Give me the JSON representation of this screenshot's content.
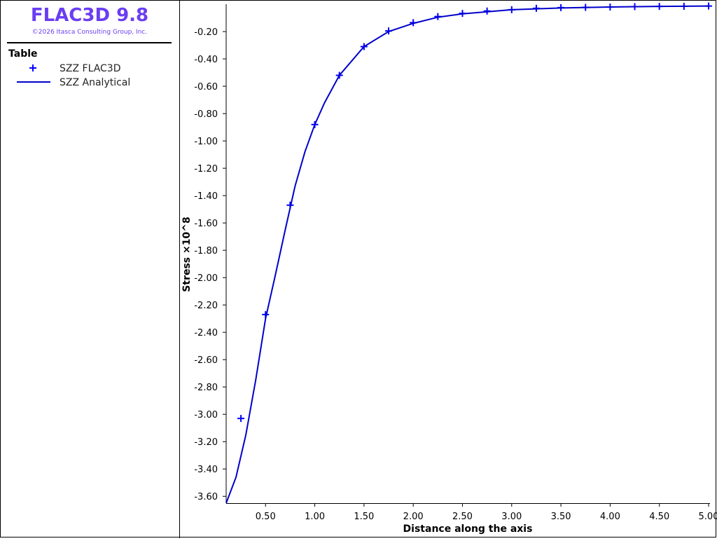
{
  "chart_data": {
    "type": "line",
    "title": "FLAC3D 9.8",
    "subtitle": "©2026 Itasca Consulting Group, Inc.",
    "legend_title": "Table",
    "x_label": "Distance along the axis",
    "y_label": "Stress ×10^8",
    "xlim": [
      0.1,
      5.0
    ],
    "ylim": [
      -3.65,
      -0.01
    ],
    "xticks": [
      {
        "value": 0.5,
        "label": "0.50"
      },
      {
        "value": 1.0,
        "label": "1.00"
      },
      {
        "value": 1.5,
        "label": "1.50"
      },
      {
        "value": 2.0,
        "label": "2.00"
      },
      {
        "value": 2.5,
        "label": "2.50"
      },
      {
        "value": 3.0,
        "label": "3.00"
      },
      {
        "value": 3.5,
        "label": "3.50"
      },
      {
        "value": 4.0,
        "label": "4.00"
      },
      {
        "value": 4.5,
        "label": "4.50"
      },
      {
        "value": 5.0,
        "label": "5.00"
      }
    ],
    "yticks": [
      {
        "value": -0.2,
        "label": "-0.20"
      },
      {
        "value": -0.4,
        "label": "-0.40"
      },
      {
        "value": -0.6,
        "label": "-0.60"
      },
      {
        "value": -0.8,
        "label": "-0.80"
      },
      {
        "value": -1.0,
        "label": "-1.00"
      },
      {
        "value": -1.2,
        "label": "-1.20"
      },
      {
        "value": -1.4,
        "label": "-1.40"
      },
      {
        "value": -1.6,
        "label": "-1.60"
      },
      {
        "value": -1.8,
        "label": "-1.80"
      },
      {
        "value": -2.0,
        "label": "-2.00"
      },
      {
        "value": -2.2,
        "label": "-2.20"
      },
      {
        "value": -2.4,
        "label": "-2.40"
      },
      {
        "value": -2.6,
        "label": "-2.60"
      },
      {
        "value": -2.8,
        "label": "-2.80"
      },
      {
        "value": -3.0,
        "label": "-3.00"
      },
      {
        "value": -3.2,
        "label": "-3.20"
      },
      {
        "value": -3.4,
        "label": "-3.40"
      },
      {
        "value": -3.6,
        "label": "-3.60"
      }
    ],
    "series": [
      {
        "name": "SZZ FLAC3D",
        "color": "#0000ff",
        "style": "markers",
        "x": [
          0.25,
          0.5,
          0.75,
          1.0,
          1.25,
          1.5,
          1.75,
          2.0,
          2.25,
          2.5,
          2.75,
          3.0,
          3.25,
          3.5,
          3.75,
          4.0,
          4.25,
          4.5,
          4.75,
          5.0
        ],
        "values": [
          -3.03,
          -2.27,
          -1.47,
          -0.88,
          -0.52,
          -0.31,
          -0.195,
          -0.135,
          -0.09,
          -0.067,
          -0.05,
          -0.04,
          -0.03,
          -0.025,
          -0.023,
          -0.02,
          -0.018,
          -0.016,
          -0.015,
          -0.013
        ]
      },
      {
        "name": "SZZ Analytical",
        "color": "#0000cc",
        "style": "line",
        "x": [
          0.1,
          0.2,
          0.3,
          0.4,
          0.5,
          0.6,
          0.7,
          0.75,
          0.8,
          0.9,
          1.0,
          1.1,
          1.25,
          1.5,
          1.75,
          2.0,
          2.25,
          2.5,
          3.0,
          3.5,
          4.0,
          4.5,
          5.0
        ],
        "values": [
          -3.65,
          -3.46,
          -3.15,
          -2.75,
          -2.3,
          -1.98,
          -1.65,
          -1.49,
          -1.33,
          -1.08,
          -0.88,
          -0.72,
          -0.52,
          -0.31,
          -0.2,
          -0.14,
          -0.095,
          -0.07,
          -0.04,
          -0.027,
          -0.02,
          -0.016,
          -0.013
        ]
      }
    ]
  }
}
